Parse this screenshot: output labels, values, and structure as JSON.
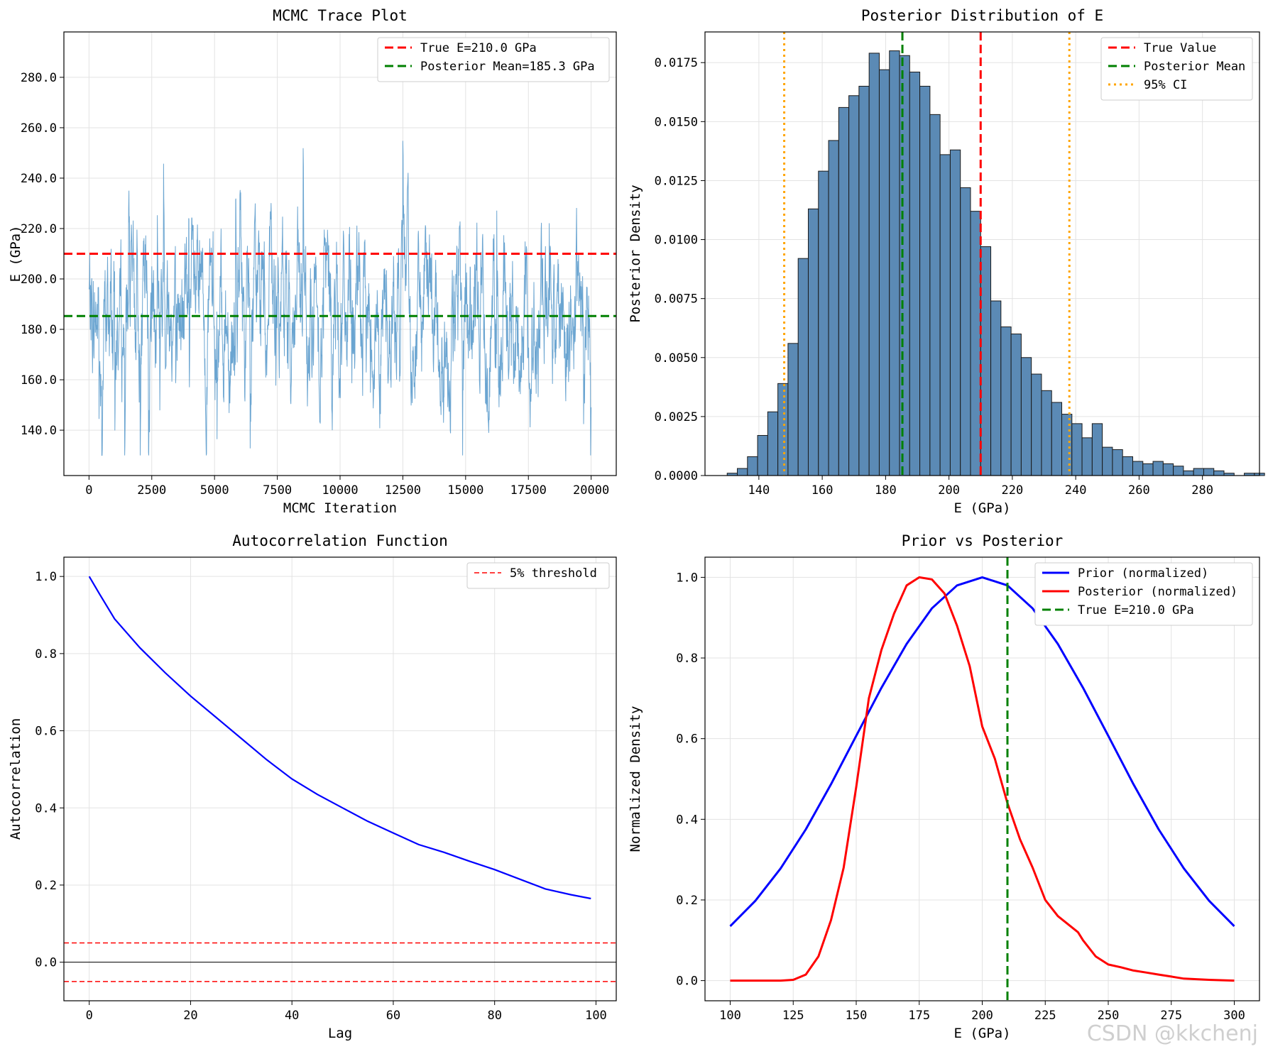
{
  "watermark": "CSDN @kkchenj",
  "colors": {
    "trace": "#5b9bcc",
    "true_line": "#ff0000",
    "mean_line": "#008000",
    "ci_line": "#ffa500",
    "hist_fill": "#5b8ab5",
    "prior": "#0000ff",
    "posterior": "#ff0000",
    "acf": "#0000ff",
    "grid": "#e3e3e3"
  },
  "chart_data": [
    {
      "id": "trace",
      "type": "line",
      "title": "MCMC Trace Plot",
      "xlabel": "MCMC Iteration",
      "ylabel": "E (GPa)",
      "xlim": [
        -1000,
        21000
      ],
      "ylim": [
        122,
        298
      ],
      "xticks": [
        0,
        2500,
        5000,
        7500,
        10000,
        12500,
        15000,
        17500,
        20000
      ],
      "yticks": [
        140,
        160,
        180,
        200,
        220,
        240,
        260,
        280
      ],
      "grid": true,
      "legend": "top-right",
      "n_samples": 20000,
      "sample_range": [
        130,
        291
      ],
      "reference_lines": [
        {
          "label": "True E=210.0 GPa",
          "value": 210.0,
          "color": "#ff0000",
          "style": "dashed"
        },
        {
          "label": "Posterior Mean=185.3 GPa",
          "value": 185.3,
          "color": "#008000",
          "style": "dashed"
        }
      ]
    },
    {
      "id": "hist",
      "type": "bar",
      "title": "Posterior Distribution of E",
      "xlabel": "E (GPa)",
      "ylabel": "Posterior Density",
      "xlim": [
        123,
        298
      ],
      "ylim": [
        0,
        0.0188
      ],
      "xticks": [
        140,
        160,
        180,
        200,
        220,
        240,
        260,
        280
      ],
      "yticks": [
        0.0,
        0.0025,
        0.005,
        0.0075,
        0.01,
        0.0125,
        0.015,
        0.0175
      ],
      "ytick_labels": [
        "0.0000",
        "0.0025",
        "0.0050",
        "0.0075",
        "0.0100",
        "0.0125",
        "0.0150",
        "0.0175"
      ],
      "grid": true,
      "legend": "top-right",
      "bin_start": 130.0,
      "bin_width": 3.2,
      "values": [
        0.0001,
        0.0003,
        0.0008,
        0.0017,
        0.0027,
        0.0039,
        0.0056,
        0.0092,
        0.0113,
        0.0129,
        0.0142,
        0.0156,
        0.0161,
        0.0165,
        0.0179,
        0.0172,
        0.018,
        0.0178,
        0.0171,
        0.0165,
        0.0153,
        0.0136,
        0.0138,
        0.0122,
        0.0112,
        0.0097,
        0.0074,
        0.0063,
        0.006,
        0.005,
        0.0043,
        0.0036,
        0.0031,
        0.0026,
        0.0022,
        0.0016,
        0.0022,
        0.0012,
        0.0011,
        0.0008,
        0.0006,
        0.0005,
        0.0006,
        0.0005,
        0.0004,
        0.0002,
        0.0003,
        0.0003,
        0.0002,
        0.0001,
        0.0,
        0.0001,
        0.0001
      ],
      "reference_lines": [
        {
          "label": "True Value",
          "value": 210.0,
          "color": "#ff0000",
          "style": "dashed"
        },
        {
          "label": "Posterior Mean",
          "value": 185.3,
          "color": "#008000",
          "style": "dashed"
        },
        {
          "label": "95% CI",
          "value": 148.0,
          "color": "#ffa500",
          "style": "dotted"
        },
        {
          "label": "",
          "value": 238.0,
          "color": "#ffa500",
          "style": "dotted"
        }
      ]
    },
    {
      "id": "acf",
      "type": "line",
      "title": "Autocorrelation Function",
      "xlabel": "Lag",
      "ylabel": "Autocorrelation",
      "xlim": [
        -5,
        104
      ],
      "ylim": [
        -0.1,
        1.05
      ],
      "xticks": [
        0,
        20,
        40,
        60,
        80,
        100
      ],
      "yticks": [
        0.0,
        0.2,
        0.4,
        0.6,
        0.8,
        1.0
      ],
      "grid": true,
      "legend": "top-right",
      "series": [
        {
          "name": "",
          "x": [
            0,
            2,
            5,
            10,
            15,
            20,
            25,
            30,
            35,
            40,
            45,
            50,
            55,
            60,
            65,
            70,
            75,
            80,
            85,
            90,
            95,
            99
          ],
          "y": [
            1.0,
            0.955,
            0.89,
            0.815,
            0.75,
            0.69,
            0.635,
            0.58,
            0.525,
            0.475,
            0.435,
            0.4,
            0.365,
            0.335,
            0.305,
            0.285,
            0.262,
            0.24,
            0.215,
            0.19,
            0.175,
            0.165
          ],
          "color": "#0000ff"
        }
      ],
      "reference_lines": [
        {
          "label": "5% threshold",
          "value": 0.05,
          "color": "#ff0000",
          "style": "dashed"
        },
        {
          "label": "",
          "value": -0.05,
          "color": "#ff0000",
          "style": "dashed"
        },
        {
          "label": "",
          "value": 0.0,
          "color": "#000000",
          "style": "solid"
        }
      ]
    },
    {
      "id": "prior",
      "type": "line",
      "title": "Prior vs Posterior",
      "xlabel": "E (GPa)",
      "ylabel": "Normalized Density",
      "xlim": [
        90,
        310
      ],
      "ylim": [
        -0.05,
        1.05
      ],
      "xticks": [
        100,
        125,
        150,
        175,
        200,
        225,
        250,
        275,
        300
      ],
      "yticks": [
        0.0,
        0.2,
        0.4,
        0.6,
        0.8,
        1.0
      ],
      "grid": true,
      "legend": "top-right",
      "series": [
        {
          "name": "Prior (normalized)",
          "color": "#0000ff",
          "x": [
            100,
            110,
            120,
            130,
            140,
            150,
            160,
            170,
            180,
            190,
            200,
            210,
            220,
            230,
            240,
            250,
            260,
            270,
            280,
            290,
            300
          ],
          "y": [
            0.135,
            0.198,
            0.278,
            0.375,
            0.487,
            0.607,
            0.726,
            0.835,
            0.923,
            0.98,
            1.0,
            0.98,
            0.923,
            0.835,
            0.726,
            0.607,
            0.487,
            0.375,
            0.278,
            0.198,
            0.135
          ]
        },
        {
          "name": "Posterior (normalized)",
          "color": "#ff0000",
          "x": [
            100,
            120,
            125,
            130,
            135,
            140,
            145,
            150,
            155,
            160,
            165,
            170,
            175,
            180,
            185,
            190,
            195,
            200,
            205,
            210,
            215,
            220,
            225,
            230,
            235,
            238,
            240,
            245,
            250,
            255,
            260,
            265,
            270,
            275,
            280,
            290,
            300
          ],
          "y": [
            0.0,
            0.0,
            0.002,
            0.015,
            0.06,
            0.15,
            0.28,
            0.48,
            0.7,
            0.82,
            0.91,
            0.98,
            1.0,
            0.995,
            0.96,
            0.88,
            0.78,
            0.63,
            0.55,
            0.44,
            0.35,
            0.28,
            0.2,
            0.16,
            0.135,
            0.12,
            0.1,
            0.06,
            0.04,
            0.033,
            0.025,
            0.02,
            0.015,
            0.01,
            0.005,
            0.002,
            0.0
          ]
        }
      ],
      "reference_lines": [
        {
          "label": "True E=210.0 GPa",
          "value": 210.0,
          "color": "#008000",
          "style": "dashed"
        }
      ]
    }
  ]
}
